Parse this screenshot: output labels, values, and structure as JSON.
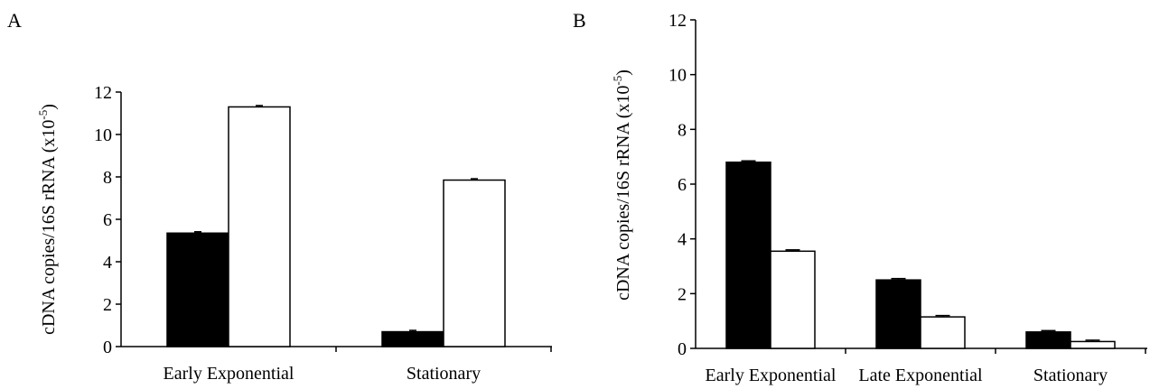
{
  "chart_data": [
    {
      "panel_label": "A",
      "type": "bar",
      "categories": [
        "Early Exponential",
        "Stationary"
      ],
      "series": [
        {
          "color": "#000000",
          "values": [
            5.35,
            0.7
          ]
        },
        {
          "color": "#ffffff",
          "values": [
            11.3,
            7.85
          ]
        }
      ],
      "ylabel": "cDNA copies/16S rRNA (x10",
      "ylabel_exp": "-5",
      "ylabel_close": ")",
      "ylim": [
        0,
        12
      ],
      "yticks": [
        "0",
        "2",
        "4",
        "6",
        "8",
        "10",
        "12"
      ],
      "grid": false,
      "legend": "none"
    },
    {
      "panel_label": "B",
      "type": "bar",
      "categories": [
        "Early Exponential",
        "Late Exponential",
        "Stationary"
      ],
      "series": [
        {
          "color": "#000000",
          "values": [
            6.8,
            2.5,
            0.6
          ]
        },
        {
          "color": "#ffffff",
          "values": [
            3.55,
            1.15,
            0.25
          ]
        }
      ],
      "ylabel": "cDNA copies/16S rRNA (x10",
      "ylabel_exp": "-5",
      "ylabel_close": ")",
      "ylim": [
        0,
        12
      ],
      "yticks": [
        "0",
        "2",
        "4",
        "6",
        "8",
        "10",
        "12"
      ],
      "grid": false,
      "legend": "none"
    }
  ]
}
